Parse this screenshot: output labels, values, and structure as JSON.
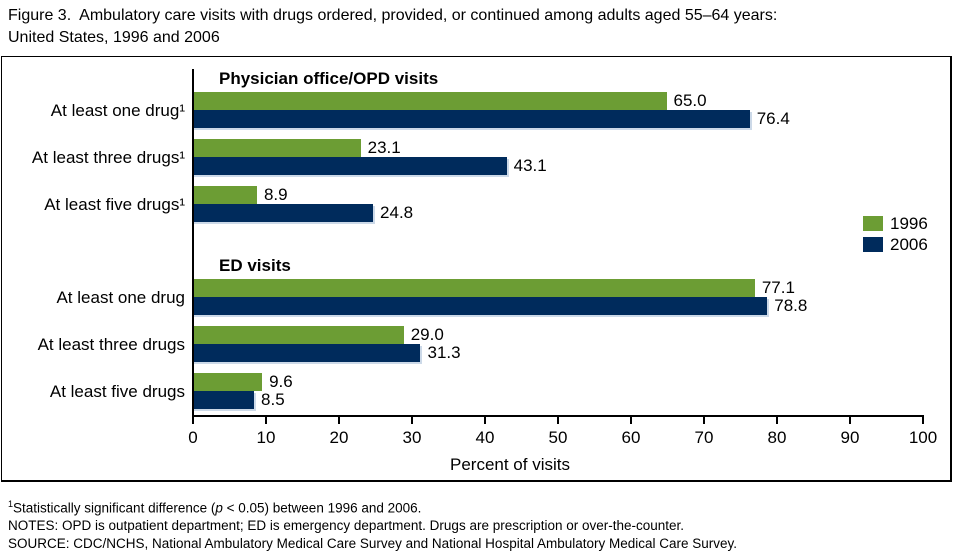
{
  "title": {
    "line1": "Figure 3.  Ambulatory care visits with drugs ordered, provided, or continued among adults aged 55–64 years:",
    "line2": "United States, 1996 and 2006"
  },
  "chart_data": {
    "type": "bar",
    "orientation": "horizontal",
    "series": [
      "1996",
      "2006"
    ],
    "colors": {
      "1996": "#6c9d34",
      "2006": "#002b5c"
    },
    "groups": [
      {
        "heading": "Physician office/OPD visits",
        "rows": [
          {
            "label": "At least one drug¹",
            "values": [
              65.0,
              76.4
            ]
          },
          {
            "label": "At least three drugs¹",
            "values": [
              23.1,
              43.1
            ]
          },
          {
            "label": "At least five drugs¹",
            "values": [
              8.9,
              24.8
            ]
          }
        ]
      },
      {
        "heading": "ED visits",
        "rows": [
          {
            "label": "At least one drug",
            "values": [
              77.1,
              78.8
            ]
          },
          {
            "label": "At least three drugs",
            "values": [
              29.0,
              31.3
            ]
          },
          {
            "label": "At least five drugs",
            "values": [
              9.6,
              8.5
            ]
          }
        ]
      }
    ],
    "xlabel": "Percent of visits",
    "xlim": [
      0,
      100
    ],
    "xticks": [
      0,
      10,
      20,
      30,
      40,
      50,
      60,
      70,
      80,
      90,
      100
    ],
    "grid": false,
    "legend_position": "right"
  },
  "legend": {
    "items": [
      {
        "label": "1996",
        "color": "#6c9d34"
      },
      {
        "label": "2006",
        "color": "#002b5c"
      }
    ]
  },
  "footnotes": {
    "sig": {
      "sup": "1",
      "pre": "Statistically significant difference (",
      "italic": "p",
      "post": " < 0.05) between 1996 and 2006."
    },
    "notes": "NOTES: OPD is outpatient department; ED is emergency department. Drugs are prescription or over-the-counter.",
    "source": "SOURCE: CDC/NCHS, National Ambulatory Medical Care Survey and National Hospital Ambulatory Medical Care Survey."
  }
}
